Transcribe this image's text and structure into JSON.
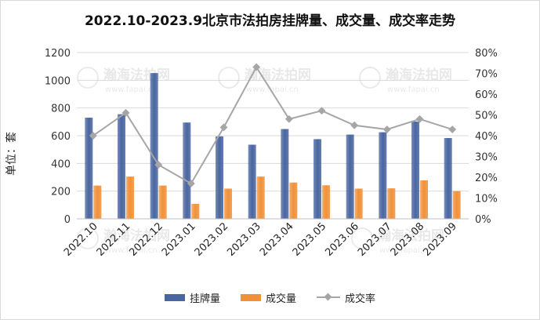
{
  "chart_data": {
    "type": "bar",
    "title": "2022.10-2023.9北京市法拍房挂牌量、成交量、成交率走势",
    "ylabel": "单位：套",
    "categories": [
      "2022.10",
      "2022.11",
      "2022.12",
      "2023.01",
      "2023.02",
      "2023.03",
      "2023.04",
      "2023.05",
      "2023.06",
      "2023.07",
      "2023.08",
      "2023.09"
    ],
    "ylim": [
      0,
      1200
    ],
    "y2lim": [
      0,
      0.8
    ],
    "yticks": [
      "0",
      "200",
      "400",
      "600",
      "800",
      "1000",
      "1200"
    ],
    "y2ticks": [
      "0%",
      "10%",
      "20%",
      "30%",
      "40%",
      "50%",
      "60%",
      "70%",
      "80%"
    ],
    "series": [
      {
        "name": "挂牌量",
        "kind": "bar",
        "axis": "left",
        "color": "#4a66a0",
        "values": [
          730,
          755,
          1052,
          695,
          595,
          535,
          648,
          575,
          608,
          625,
          702,
          583
        ]
      },
      {
        "name": "成交量",
        "kind": "bar",
        "axis": "left",
        "color": "#f0913a",
        "values": [
          240,
          305,
          240,
          108,
          218,
          305,
          262,
          242,
          218,
          220,
          278,
          200
        ]
      },
      {
        "name": "成交率",
        "kind": "line",
        "axis": "right",
        "color": "#a6a6a6",
        "values": [
          0.4,
          0.51,
          0.26,
          0.17,
          0.44,
          0.73,
          0.48,
          0.52,
          0.45,
          0.43,
          0.48,
          0.43
        ]
      }
    ],
    "grid": true,
    "legend_position": "bottom",
    "watermark": "瀚海法拍网 www.fapai.cn"
  }
}
